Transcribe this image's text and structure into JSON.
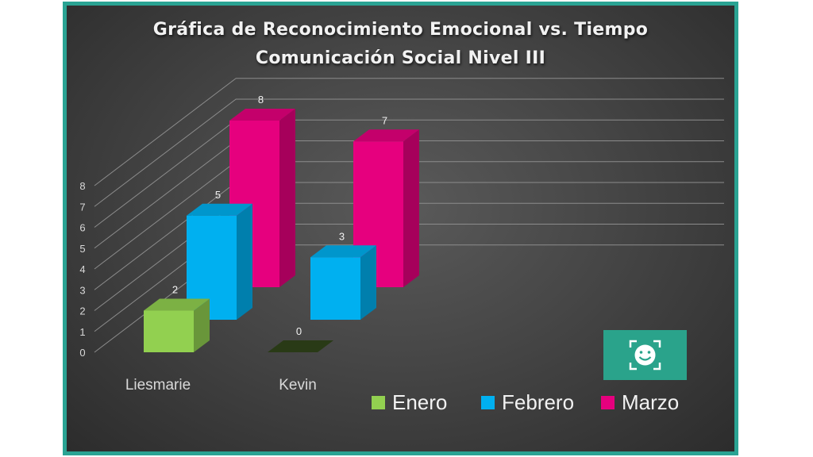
{
  "chart_data": {
    "type": "bar",
    "title": "Gráfica de Reconocimiento Emocional vs. Tiempo",
    "subtitle": "Comunicación Social Nivel III",
    "categories": [
      "Liesmarie",
      "Kevin"
    ],
    "series": [
      {
        "name": "Enero",
        "values": [
          2,
          0
        ],
        "color": "#92d050"
      },
      {
        "name": "Febrero",
        "values": [
          5,
          3
        ],
        "color": "#00b0f0"
      },
      {
        "name": "Marzo",
        "values": [
          8,
          7
        ],
        "color": "#e6007e"
      }
    ],
    "yticks": [
      "0",
      "1",
      "2",
      "3",
      "4",
      "5",
      "6",
      "7",
      "8"
    ],
    "ylim": [
      0,
      8
    ],
    "grid": true,
    "legend_position": "bottom-right",
    "style": "3d-column"
  },
  "icons": {
    "logo": "emotion-recognition-icon"
  }
}
